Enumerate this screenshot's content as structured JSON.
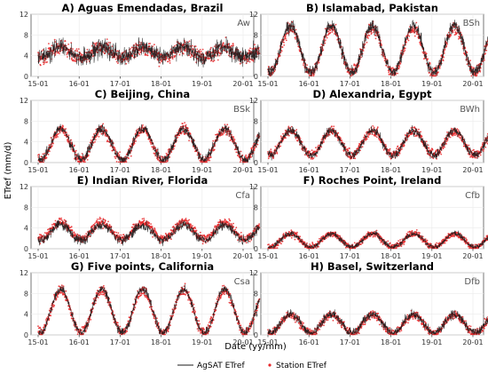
{
  "figure": {
    "ylabel": "ETref (mm/d)",
    "xlabel": "Date (yy/mm)",
    "legend": {
      "agsat_label": "AgSAT ETref",
      "station_label": "Station ETref",
      "placement": "bottom"
    }
  },
  "colors": {
    "agsat_line": "#1a1a1a",
    "station_points": "#e8292c",
    "panel_bg": "#ffffff",
    "panel_border": "#555555",
    "grid": "#ebebeb"
  },
  "chart_data": [
    {
      "type": "line",
      "panel": "A",
      "title": "A) Aguas Emendadas, Brazil",
      "climate": "Aw",
      "ylim": [
        0,
        12
      ],
      "yticks": [
        0,
        4,
        8,
        12
      ],
      "xticks": [
        "15-01",
        "16-01",
        "17-01",
        "18-01",
        "19-01",
        "20-01"
      ],
      "series": [
        {
          "name": "AgSAT ETref",
          "mean": 4.6,
          "amplitude": 1.0,
          "noise": 1.6
        },
        {
          "name": "Station ETref",
          "mean": 4.6,
          "amplitude": 1.0,
          "noise": 1.3
        }
      ]
    },
    {
      "type": "line",
      "panel": "B",
      "title": "B) Islamabad, Pakistan",
      "climate": "BSh",
      "ylim": [
        0,
        12
      ],
      "yticks": [
        0,
        4,
        8,
        12
      ],
      "xticks": [
        "15-01",
        "16-01",
        "17-01",
        "18-01",
        "19-01",
        "20-01"
      ],
      "series": [
        {
          "name": "AgSAT ETref",
          "mean": 5.2,
          "amplitude": 4.5,
          "noise": 1.2
        },
        {
          "name": "Station ETref",
          "mean": 5.0,
          "amplitude": 4.3,
          "noise": 1.1
        }
      ]
    },
    {
      "type": "line",
      "panel": "C",
      "title": "C) Beijing, China",
      "climate": "BSk",
      "ylim": [
        0,
        12
      ],
      "yticks": [
        0,
        4,
        8,
        12
      ],
      "xticks": [
        "15-01",
        "16-01",
        "17-01",
        "18-01",
        "19-01",
        "20-01"
      ],
      "series": [
        {
          "name": "AgSAT ETref",
          "mean": 3.5,
          "amplitude": 3.0,
          "noise": 0.9
        },
        {
          "name": "Station ETref",
          "mean": 3.4,
          "amplitude": 3.0,
          "noise": 1.0
        }
      ]
    },
    {
      "type": "line",
      "panel": "D",
      "title": "D) Alexandria, Egypt",
      "climate": "BWh",
      "ylim": [
        0,
        12
      ],
      "yticks": [
        0,
        4,
        8,
        12
      ],
      "xticks": [
        "15-01",
        "16-01",
        "17-01",
        "18-01",
        "19-01",
        "20-01"
      ],
      "series": [
        {
          "name": "AgSAT ETref",
          "mean": 3.8,
          "amplitude": 2.4,
          "noise": 0.8
        },
        {
          "name": "Station ETref",
          "mean": 3.8,
          "amplitude": 2.3,
          "noise": 0.9
        }
      ]
    },
    {
      "type": "line",
      "panel": "E",
      "title": "E) Indian River, Florida",
      "climate": "Cfa",
      "ylim": [
        0,
        12
      ],
      "yticks": [
        0,
        4,
        8,
        12
      ],
      "xticks": [
        "15-01",
        "16-01",
        "17-01",
        "18-01",
        "19-01",
        "20-01"
      ],
      "series": [
        {
          "name": "AgSAT ETref",
          "mean": 3.1,
          "amplitude": 1.5,
          "noise": 0.9
        },
        {
          "name": "Station ETref",
          "mean": 3.5,
          "amplitude": 1.6,
          "noise": 0.8
        }
      ]
    },
    {
      "type": "line",
      "panel": "F",
      "title": "F) Roches Point, Ireland",
      "climate": "Cfb",
      "ylim": [
        0,
        12
      ],
      "yticks": [
        0,
        4,
        8,
        12
      ],
      "xticks": [
        "15-01",
        "16-01",
        "17-01",
        "18-01",
        "19-01",
        "20-01"
      ],
      "series": [
        {
          "name": "AgSAT ETref",
          "mean": 1.6,
          "amplitude": 1.3,
          "noise": 0.5
        },
        {
          "name": "Station ETref",
          "mean": 1.6,
          "amplitude": 1.3,
          "noise": 0.6
        }
      ]
    },
    {
      "type": "line",
      "panel": "G",
      "title": "G) Five points, California",
      "climate": "Csa",
      "ylim": [
        0,
        12
      ],
      "yticks": [
        0,
        4,
        8,
        12
      ],
      "xticks": [
        "15-01",
        "16-01",
        "17-01",
        "18-01",
        "19-01",
        "20-01"
      ],
      "series": [
        {
          "name": "AgSAT ETref",
          "mean": 4.6,
          "amplitude": 4.2,
          "noise": 0.8
        },
        {
          "name": "Station ETref",
          "mean": 4.5,
          "amplitude": 4.1,
          "noise": 0.9
        }
      ]
    },
    {
      "type": "line",
      "panel": "H",
      "title": "H) Basel, Switzerland",
      "climate": "Dfb",
      "ylim": [
        0,
        12
      ],
      "yticks": [
        0,
        4,
        8,
        12
      ],
      "xticks": [
        "15-01",
        "16-01",
        "17-01",
        "18-01",
        "19-01",
        "20-01"
      ],
      "series": [
        {
          "name": "AgSAT ETref",
          "mean": 2.2,
          "amplitude": 1.8,
          "noise": 0.8
        },
        {
          "name": "Station ETref",
          "mean": 2.1,
          "amplitude": 1.8,
          "noise": 0.7
        }
      ]
    }
  ]
}
